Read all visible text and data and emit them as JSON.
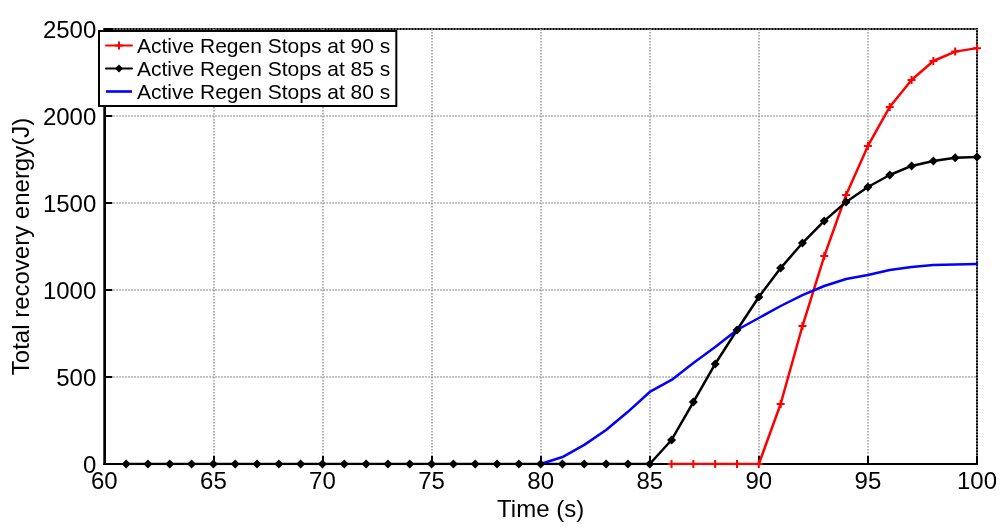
{
  "chart_data": {
    "type": "line",
    "xlabel": "Time (s)",
    "ylabel": "Total recovery energy(J)",
    "xlim": [
      60,
      100
    ],
    "xticks": [
      60,
      65,
      70,
      75,
      80,
      85,
      90,
      95,
      100
    ],
    "ylim": [
      0,
      2500
    ],
    "yticks": [
      0,
      500,
      1000,
      1500,
      2000,
      2500
    ],
    "grid": true,
    "legend": "top left",
    "series": [
      {
        "name": "Active Regen Stops at 90 s",
        "color": "#ff0000",
        "marker": "cross",
        "x": [
          86,
          87,
          88,
          89,
          90,
          91,
          92,
          93,
          94,
          95,
          96,
          97,
          98,
          99,
          100
        ],
        "values": [
          0,
          0,
          0,
          0,
          0,
          345,
          793,
          1195,
          1546,
          1828,
          2052,
          2207,
          2316,
          2370,
          2390
        ]
      },
      {
        "name": "Active Regen Stops at 85 s",
        "color": "#000000",
        "marker": "diamond",
        "x": [
          61,
          62,
          63,
          64,
          65,
          66,
          67,
          68,
          69,
          70,
          71,
          72,
          73,
          74,
          75,
          76,
          77,
          78,
          79,
          80,
          81,
          82,
          83,
          84,
          85,
          86,
          87,
          88,
          89,
          90,
          91,
          92,
          93,
          94,
          95,
          96,
          97,
          98,
          99,
          100
        ],
        "values": [
          0,
          0,
          0,
          0,
          0,
          0,
          0,
          0,
          0,
          0,
          0,
          0,
          0,
          0,
          0,
          0,
          0,
          0,
          0,
          0,
          0,
          0,
          0,
          0,
          0,
          138,
          356,
          575,
          770,
          960,
          1126,
          1270,
          1397,
          1506,
          1592,
          1661,
          1713,
          1741,
          1760,
          1764
        ]
      },
      {
        "name": "Active Regen Stops at 80 s",
        "color": "#0000ff",
        "marker": "none",
        "x": [
          80,
          81,
          82,
          83,
          84,
          85,
          86,
          87,
          88,
          89,
          90,
          91,
          92,
          93,
          94,
          95,
          96,
          97,
          98,
          99,
          100
        ],
        "values": [
          0,
          40,
          110,
          195,
          300,
          414,
          483,
          580,
          672,
          770,
          839,
          908,
          971,
          1023,
          1063,
          1086,
          1115,
          1132,
          1144,
          1147,
          1149
        ]
      }
    ]
  }
}
